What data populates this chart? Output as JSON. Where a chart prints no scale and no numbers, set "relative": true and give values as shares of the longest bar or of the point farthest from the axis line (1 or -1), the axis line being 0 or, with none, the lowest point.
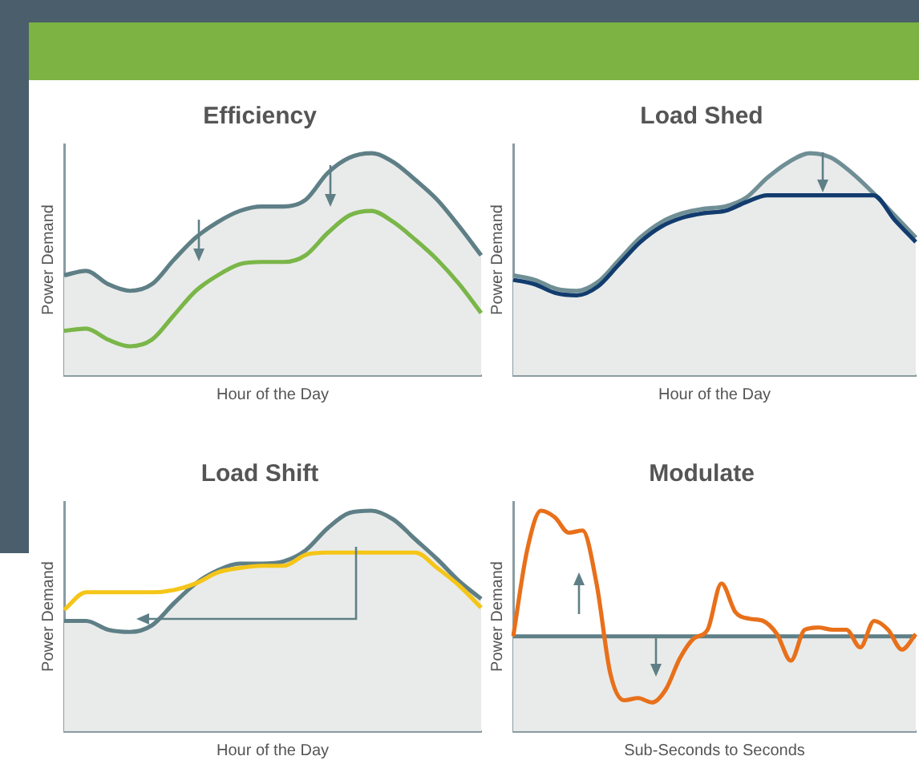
{
  "chart_data": [
    {
      "type": "line",
      "title": "Efficiency",
      "xlabel": "Hour of the Day",
      "ylabel": "Power Demand",
      "relative": true,
      "tick_labels": false,
      "grid": false,
      "legend": false,
      "marker": "none",
      "categories": [
        null,
        null,
        null,
        null,
        null,
        null,
        null,
        null,
        null,
        null,
        null,
        null,
        null,
        null,
        null,
        null,
        null,
        null,
        null,
        null
      ],
      "series": [
        {
          "type": "area",
          "color": "#5f7f86",
          "values": [
            0.45,
            0.47,
            0.41,
            0.38,
            0.41,
            0.52,
            0.62,
            0.69,
            0.74,
            0.76,
            0.76,
            0.79,
            0.91,
            0.98,
            1.0,
            0.96,
            0.88,
            0.79,
            0.67,
            0.54
          ]
        },
        {
          "color": "#7ab648",
          "values": [
            0.2,
            0.21,
            0.16,
            0.13,
            0.16,
            0.27,
            0.38,
            0.45,
            0.5,
            0.51,
            0.51,
            0.54,
            0.64,
            0.72,
            0.74,
            0.69,
            0.61,
            0.52,
            0.41,
            0.28
          ]
        }
      ]
    },
    {
      "type": "line",
      "title": "Load Shed",
      "xlabel": "Hour of the Day",
      "ylabel": "Power Demand",
      "relative": true,
      "tick_labels": false,
      "grid": false,
      "legend": false,
      "marker": "none",
      "categories": [
        null,
        null,
        null,
        null,
        null,
        null,
        null,
        null,
        null,
        null,
        null,
        null,
        null,
        null,
        null,
        null,
        null,
        null,
        null,
        null
      ],
      "series": [
        {
          "type": "area",
          "color": "#6f8f95",
          "values": [
            0.45,
            0.43,
            0.39,
            0.38,
            0.42,
            0.52,
            0.62,
            0.69,
            0.73,
            0.75,
            0.76,
            0.8,
            0.89,
            0.96,
            1.0,
            0.98,
            0.91,
            0.82,
            0.72,
            0.62
          ]
        },
        {
          "color": "#123c6e",
          "values": [
            0.43,
            0.41,
            0.37,
            0.36,
            0.4,
            0.5,
            0.6,
            0.67,
            0.71,
            0.73,
            0.74,
            0.78,
            0.81,
            0.81,
            0.81,
            0.81,
            0.81,
            0.81,
            0.7,
            0.6
          ]
        }
      ]
    },
    {
      "type": "line",
      "title": "Load Shift",
      "xlabel": "Hour of the Day",
      "ylabel": "Power Demand",
      "relative": true,
      "tick_labels": false,
      "grid": false,
      "legend": false,
      "marker": "none",
      "categories": [
        null,
        null,
        null,
        null,
        null,
        null,
        null,
        null,
        null,
        null,
        null,
        null,
        null,
        null,
        null,
        null,
        null,
        null,
        null,
        null
      ],
      "series": [
        {
          "type": "area",
          "color": "#5f7f86",
          "values": [
            0.5,
            0.5,
            0.46,
            0.45,
            0.48,
            0.58,
            0.67,
            0.73,
            0.76,
            0.76,
            0.77,
            0.82,
            0.92,
            0.99,
            1.0,
            0.96,
            0.87,
            0.78,
            0.68,
            0.6
          ]
        },
        {
          "color": "#f5c518",
          "values": [
            0.55,
            0.63,
            0.63,
            0.63,
            0.63,
            0.64,
            0.67,
            0.72,
            0.74,
            0.75,
            0.75,
            0.8,
            0.81,
            0.81,
            0.81,
            0.81,
            0.81,
            0.74,
            0.66,
            0.56
          ]
        }
      ]
    },
    {
      "type": "line",
      "title": "Modulate",
      "xlabel": "Sub-Seconds to Seconds",
      "ylabel": "Power Demand",
      "relative": true,
      "tick_labels": false,
      "grid": false,
      "legend": false,
      "marker": "none",
      "categories": [
        null,
        null,
        null,
        null,
        null,
        null,
        null,
        null,
        null,
        null,
        null,
        null,
        null,
        null,
        null,
        null,
        null,
        null,
        null,
        null,
        null,
        null,
        null,
        null,
        null,
        null,
        null,
        null,
        null,
        null
      ],
      "series": [
        {
          "type": "area",
          "color": "#5f7f86",
          "values": [
            0.43,
            0.43,
            0.43,
            0.43,
            0.43,
            0.43,
            0.43,
            0.43,
            0.43,
            0.43,
            0.43,
            0.43,
            0.43,
            0.43,
            0.43,
            0.43,
            0.43,
            0.43,
            0.43,
            0.43,
            0.43,
            0.43,
            0.43,
            0.43,
            0.43,
            0.43,
            0.43,
            0.43,
            0.43,
            0.43
          ]
        },
        {
          "color": "#e8701a",
          "values": [
            0.43,
            0.82,
            1.0,
            0.97,
            0.9,
            0.91,
            0.67,
            0.26,
            0.14,
            0.15,
            0.13,
            0.19,
            0.33,
            0.42,
            0.46,
            0.67,
            0.54,
            0.51,
            0.5,
            0.44,
            0.32,
            0.46,
            0.47,
            0.46,
            0.46,
            0.38,
            0.5,
            0.46,
            0.37,
            0.44
          ]
        }
      ]
    }
  ]
}
